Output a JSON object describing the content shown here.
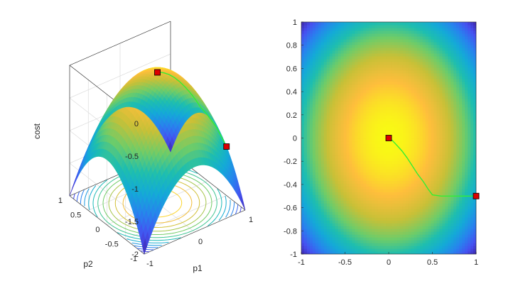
{
  "chart_data": [
    {
      "type": "surface",
      "title": "",
      "xlabel": "p1",
      "ylabel": "p2",
      "zlabel": "cost",
      "xlim": [
        -1,
        1
      ],
      "ylim": [
        -1,
        1
      ],
      "zlim": [
        -2,
        0
      ],
      "xticks": [
        "-1",
        "0",
        "1"
      ],
      "yticks": [
        "-1",
        "-0.5",
        "0",
        "0.5",
        "1"
      ],
      "zticks": [
        "-2",
        "-1.5",
        "-1",
        "-0.5",
        "0"
      ],
      "function": "cost = -(p1^2 + p2^2)",
      "grid": true,
      "contour_levels": [
        -0.15,
        -0.3,
        -0.45,
        -0.6,
        -0.75,
        -0.9,
        -1.05,
        -1.2,
        -1.35,
        -1.5,
        -1.65,
        -1.8,
        -1.95
      ],
      "markers": [
        {
          "p1": 0,
          "p2": 0,
          "cost": 0
        },
        {
          "p1": 1,
          "p2": -0.5,
          "cost": -1.25
        }
      ],
      "path": [
        {
          "p1": 1.0,
          "p2": -0.5
        },
        {
          "p1": 0.8,
          "p2": -0.5
        },
        {
          "p1": 0.6,
          "p2": -0.5
        },
        {
          "p1": 0.5,
          "p2": -0.49
        },
        {
          "p1": 0.45,
          "p2": -0.44
        },
        {
          "p1": 0.4,
          "p2": -0.38
        },
        {
          "p1": 0.33,
          "p2": -0.31
        },
        {
          "p1": 0.27,
          "p2": -0.24
        },
        {
          "p1": 0.21,
          "p2": -0.17
        },
        {
          "p1": 0.15,
          "p2": -0.11
        },
        {
          "p1": 0.09,
          "p2": -0.06
        },
        {
          "p1": 0.04,
          "p2": -0.02
        },
        {
          "p1": 0.0,
          "p2": 0.0
        }
      ],
      "colormap": "parula"
    },
    {
      "type": "heatmap",
      "title": "",
      "xlabel": "",
      "ylabel": "",
      "xlim": [
        -1,
        1
      ],
      "ylim": [
        -1,
        1
      ],
      "xticks": [
        "-1",
        "-0.5",
        "0",
        "0.5",
        "1"
      ],
      "yticks": [
        "-1",
        "-0.8",
        "-0.6",
        "-0.4",
        "-0.2",
        "0",
        "0.2",
        "0.4",
        "0.6",
        "0.8",
        "1"
      ],
      "function": "cost = -(p1^2 + p2^2)",
      "colormap": "parula",
      "markers": [
        {
          "x": 0,
          "y": 0
        },
        {
          "x": 1,
          "y": -0.5
        }
      ],
      "path": [
        {
          "x": 1.0,
          "y": -0.5
        },
        {
          "x": 0.8,
          "y": -0.5
        },
        {
          "x": 0.6,
          "y": -0.5
        },
        {
          "x": 0.5,
          "y": -0.49
        },
        {
          "x": 0.45,
          "y": -0.44
        },
        {
          "x": 0.4,
          "y": -0.38
        },
        {
          "x": 0.33,
          "y": -0.31
        },
        {
          "x": 0.27,
          "y": -0.24
        },
        {
          "x": 0.21,
          "y": -0.17
        },
        {
          "x": 0.15,
          "y": -0.11
        },
        {
          "x": 0.09,
          "y": -0.06
        },
        {
          "x": 0.04,
          "y": -0.02
        },
        {
          "x": 0.0,
          "y": 0.0
        }
      ]
    }
  ],
  "colors": {
    "path": "#33ee33",
    "marker_fill": "#dd0000",
    "marker_edge": "#000000",
    "axis": "#262626",
    "grid": "#dcdcdc"
  }
}
